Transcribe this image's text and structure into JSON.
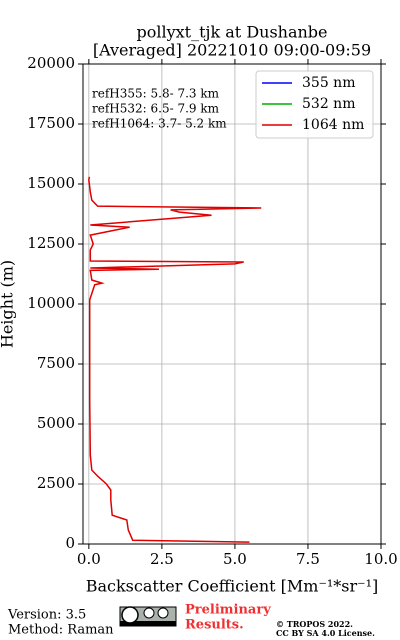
{
  "chart_data": {
    "type": "line",
    "title": [
      "pollyxt_tjk at Dushanbe",
      "[Averaged] 20221010 09:00-09:59"
    ],
    "x_label": "Backscatter Coefficient [Mm⁻¹*sr⁻¹]",
    "y_label": "Height (m)",
    "y": [
      80,
      160,
      580,
      1000,
      1200,
      1830,
      2250,
      2500,
      2830,
      3080,
      3700,
      6000,
      10170,
      10800,
      10870,
      11000,
      11400,
      11450,
      11500,
      11670,
      11750,
      11790,
      12250,
      12500,
      12870,
      13200,
      13290,
      13700,
      13830,
      13920,
      14000,
      14080,
      14330,
      14670,
      15170,
      15300
    ],
    "series": [
      {
        "name": "355 nm",
        "color": "#0000ff",
        "values": [
          null,
          null,
          null,
          null,
          null,
          null,
          null,
          null,
          null,
          null,
          null,
          null,
          null,
          null,
          null,
          null,
          null,
          null,
          null,
          null,
          null,
          null,
          null,
          null,
          null,
          null,
          null,
          null,
          null,
          null,
          null,
          null,
          null,
          null,
          null,
          null
        ]
      },
      {
        "name": "532 nm",
        "color": "#00b000",
        "values": [
          null,
          null,
          null,
          null,
          null,
          null,
          null,
          null,
          null,
          null,
          null,
          null,
          null,
          null,
          null,
          null,
          null,
          null,
          null,
          null,
          null,
          null,
          null,
          null,
          null,
          null,
          null,
          null,
          null,
          null,
          null,
          null,
          null,
          null,
          null,
          null
        ]
      },
      {
        "name": "1064 nm",
        "color": "#e00000",
        "values": [
          5.5,
          1.5,
          1.35,
          1.3,
          0.8,
          0.75,
          0.75,
          0.6,
          0.3,
          0.1,
          0.05,
          0.03,
          0.03,
          0.2,
          0.45,
          0.1,
          0.05,
          2.4,
          0.05,
          5.0,
          5.3,
          0.05,
          0.05,
          0.15,
          0.05,
          1.4,
          0.05,
          4.2,
          3.1,
          2.8,
          5.9,
          0.3,
          0.1,
          0.05,
          0.0,
          0.02
        ]
      }
    ],
    "xlim": [
      -0.2,
      10
    ],
    "ylim": [
      0,
      20000
    ],
    "xticks": [
      {
        "value": 0,
        "label": "0.0"
      },
      2.5,
      {
        "value": 5,
        "label": "5.0"
      },
      7.5,
      {
        "value": 10,
        "label": "10.0"
      }
    ],
    "yticks": [
      0,
      2500,
      5000,
      7500,
      10000,
      12500,
      15000,
      17500,
      20000
    ],
    "grid": true,
    "legend": "upper right",
    "annotations": [
      "refH355:  5.8- 7.3 km",
      "refH532:  6.5- 7.9 km",
      "refH1064:  3.7- 5.2 km"
    ]
  },
  "footer": {
    "version": "Version: 3.5",
    "method": "Method: Raman",
    "preliminary": [
      "Preliminary",
      "Results."
    ],
    "license": [
      "© TROPOS 2022.",
      "CC BY SA 4.0 License."
    ]
  }
}
